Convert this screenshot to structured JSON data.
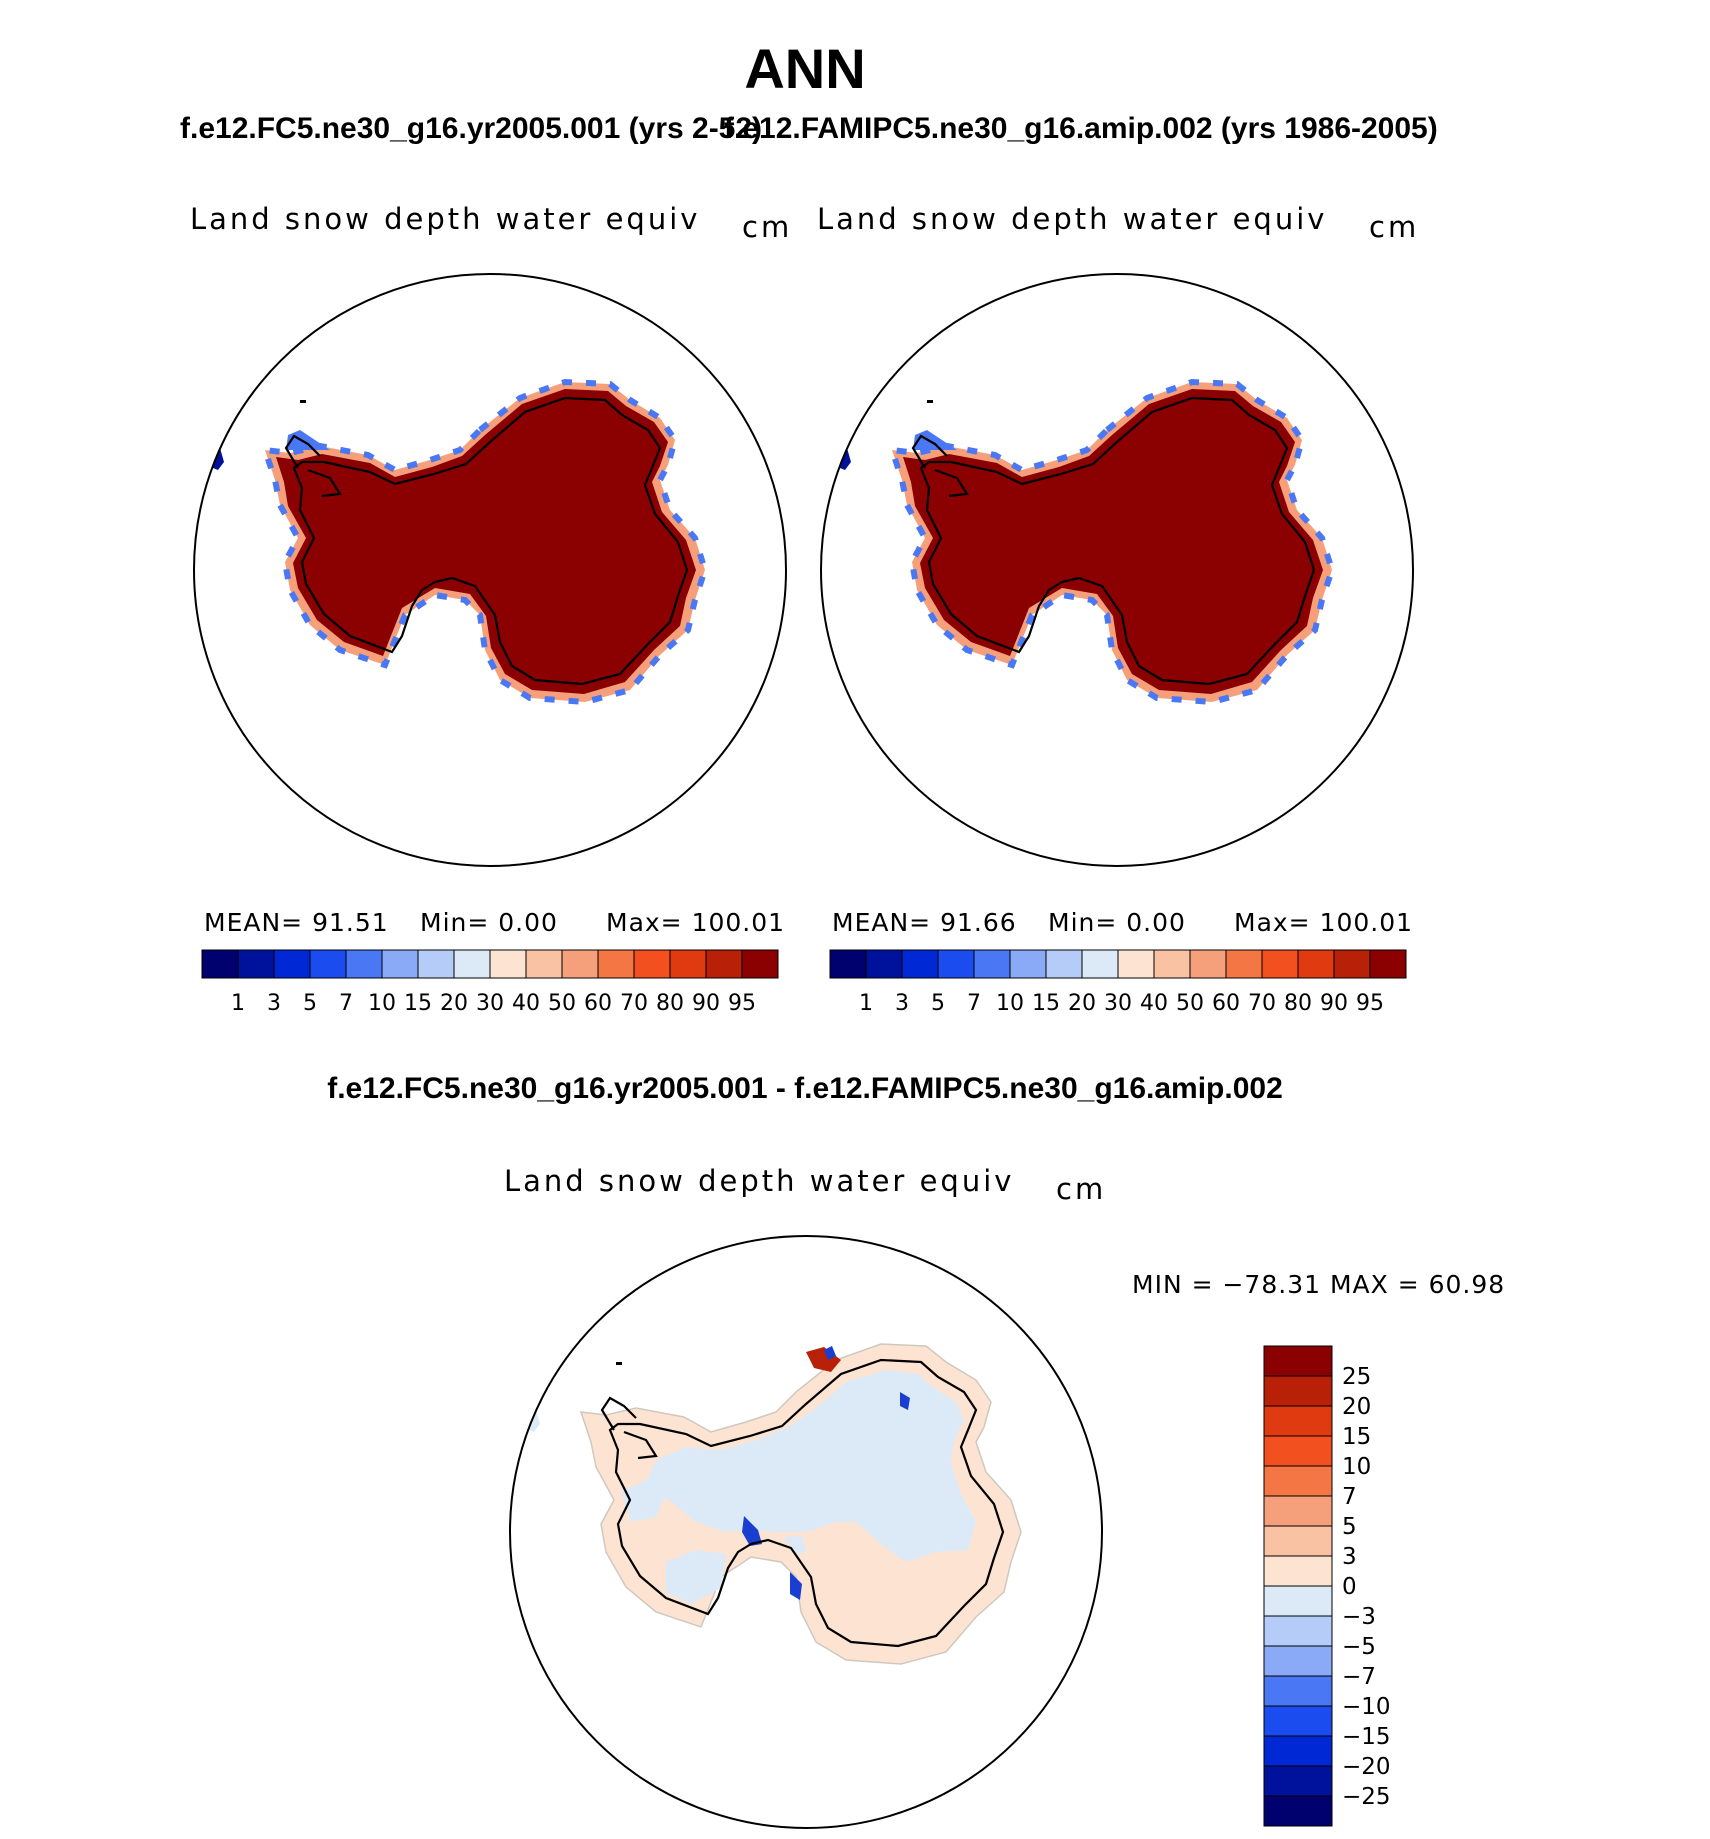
{
  "page": {
    "title": "ANN",
    "panel1": {
      "case": "f.e12.FC5.ne30_g16.yr2005.001 (yrs 2-52)",
      "variable": "Land snow depth water equiv",
      "units": "cm",
      "mean": "MEAN=   91.51",
      "min": "Min=     0.00",
      "max": "Max=  100.01"
    },
    "panel2": {
      "case": "f.e12.FAMIPC5.ne30_g16.amip.002 (yrs 1986-2005)",
      "variable": "Land snow depth water equiv",
      "units": "cm",
      "mean": "MEAN=   91.66",
      "min": "Min=     0.00",
      "max": "Max=  100.01"
    },
    "panel3": {
      "case": "f.e12.FC5.ne30_g16.yr2005.001 - f.e12.FAMIPC5.ne30_g16.amip.002",
      "variable": "Land snow depth water equiv",
      "units": "cm",
      "minmax": "MIN = −78.31  MAX =    60.98"
    }
  },
  "colorbar_top": {
    "labels": [
      "1",
      "3",
      "5",
      "7",
      "10",
      "15",
      "20",
      "30",
      "40",
      "50",
      "60",
      "70",
      "80",
      "90",
      "95"
    ],
    "colors": [
      "#00006e",
      "#00129c",
      "#0028d4",
      "#1a4cf0",
      "#4a78f5",
      "#8aaaf7",
      "#b5ccf8",
      "#dceaf8",
      "#fde4d2",
      "#f9c2a3",
      "#f6a07b",
      "#f57645",
      "#f2501e",
      "#e03a10",
      "#b82108",
      "#8b0000"
    ]
  },
  "colorbar_diff": {
    "labels": [
      "25",
      "20",
      "15",
      "10",
      "7",
      "5",
      "3",
      "0",
      "−3",
      "−5",
      "−7",
      "−10",
      "−15",
      "−20",
      "−25"
    ],
    "colors": [
      "#8b0000",
      "#b82108",
      "#e03a10",
      "#f2501e",
      "#f57645",
      "#f6a07b",
      "#f9c2a3",
      "#fde4d2",
      "#dceaf8",
      "#b5ccf8",
      "#8aaaf7",
      "#4a78f5",
      "#1a4cf0",
      "#0028d4",
      "#00129c",
      "#00006e"
    ]
  },
  "colors": {
    "land_fill": "#8b0000",
    "diff_positive_light": "#fde4d2",
    "diff_negative_light": "#dceaf8",
    "diff_dark_blue": "#1a3fd0",
    "diff_dark_red": "#b82108"
  }
}
